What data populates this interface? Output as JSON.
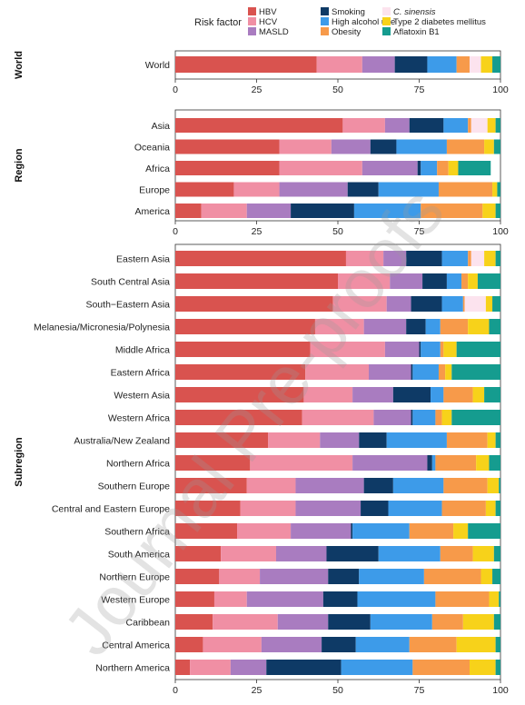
{
  "legend": {
    "title": "Risk factor",
    "items": [
      {
        "label": "HBV",
        "color": "#d9534f"
      },
      {
        "label": "HCV",
        "color": "#f08fa4"
      },
      {
        "label": "MASLD",
        "color": "#a97cc0"
      },
      {
        "label": "Smoking",
        "color": "#0e3a66"
      },
      {
        "label": "High alcohol use",
        "color": "#3d9be9"
      },
      {
        "label": "Obesity",
        "color": "#f79a4a"
      },
      {
        "label": "C. sinensis",
        "color": "#fce3ee",
        "italic": true
      },
      {
        "label": "Type 2 diabetes mellitus",
        "color": "#f7d21a"
      },
      {
        "label": "Aflatoxin B1",
        "color": "#159c8f"
      }
    ]
  },
  "watermark": "Journal Pre-proofs",
  "chart_data": {
    "type": "bar",
    "orientation": "horizontal",
    "stacked": true,
    "xlim": [
      0,
      100
    ],
    "xticks": [
      "0",
      "25",
      "50",
      "75",
      "100"
    ],
    "series": [
      "HBV",
      "HCV",
      "MASLD",
      "Smoking",
      "High alcohol use",
      "Obesity",
      "C. sinensis",
      "Type 2 diabetes mellitus",
      "Aflatoxin B1"
    ],
    "panels": [
      {
        "title": "World",
        "categories": [
          "World"
        ],
        "values": [
          [
            43.5,
            14,
            10,
            10,
            9,
            4,
            3.5,
            3.5,
            2.5
          ]
        ]
      },
      {
        "title": "Region",
        "categories": [
          "Asia",
          "Oceania",
          "Africa",
          "Europe",
          "America"
        ],
        "values": [
          [
            51.5,
            13,
            7.5,
            10.5,
            7.5,
            1,
            5,
            2.5,
            1.5
          ],
          [
            32,
            16,
            12,
            8,
            15.5,
            11.5,
            0,
            3,
            2
          ],
          [
            32,
            25.5,
            17,
            1,
            5,
            3.5,
            0,
            3,
            10
          ],
          [
            18,
            14,
            21,
            9.5,
            18.5,
            16.5,
            0,
            1.5,
            1
          ],
          [
            8,
            14,
            13.5,
            19.5,
            20.5,
            19,
            0,
            4,
            1.5
          ]
        ]
      },
      {
        "title": "Subregion",
        "categories": [
          "Eastern Asia",
          "South Central Asia",
          "South−Eastern Asia",
          "Melanesia/Micronesia/Polynesia",
          "Middle Africa",
          "Eastern Africa",
          "Western Asia",
          "Western Africa",
          "Australia/New Zealand",
          "Northern Africa",
          "Southern Europe",
          "Central and Eastern Europe",
          "Southern Africa",
          "South America",
          "Northern Europe",
          "Western Europe",
          "Caribbean",
          "Central America",
          "Northern America"
        ],
        "values": [
          [
            52.5,
            11.5,
            7,
            11,
            8,
            1,
            4,
            3.5,
            1.5
          ],
          [
            50,
            16,
            10,
            7.5,
            4.5,
            2,
            0,
            3,
            7
          ],
          [
            48.5,
            16.5,
            7.5,
            9.5,
            6.5,
            0.5,
            6.5,
            2,
            2.5
          ],
          [
            43,
            15,
            13,
            6,
            4.5,
            8.5,
            0,
            6.5,
            3.5
          ],
          [
            41.5,
            23,
            10.5,
            0.5,
            6,
            1,
            0,
            4,
            13.5
          ],
          [
            40,
            19.5,
            13,
            0.5,
            8,
            2,
            0,
            2,
            15
          ],
          [
            39.5,
            15,
            12.5,
            11.5,
            4,
            9,
            0,
            3.5,
            5
          ],
          [
            39,
            22,
            11.5,
            0.5,
            7,
            2,
            0,
            3,
            15
          ],
          [
            28.5,
            16,
            12,
            8.5,
            18.5,
            12.5,
            0,
            2.5,
            1.5
          ],
          [
            23,
            31.5,
            23,
            1.5,
            1,
            12.5,
            0,
            4,
            3.5
          ],
          [
            22,
            15,
            21,
            9,
            15.5,
            13.5,
            0,
            3.5,
            0.5
          ],
          [
            20,
            17,
            20,
            8.5,
            16.5,
            13.5,
            0,
            3,
            1.5
          ],
          [
            19,
            16.5,
            18.5,
            0.5,
            17.5,
            13.5,
            0,
            4.5,
            10
          ],
          [
            14,
            17,
            15.5,
            16,
            19,
            10,
            0,
            6.5,
            2
          ],
          [
            13.5,
            12.5,
            21,
            9.5,
            20,
            17.5,
            0,
            3.5,
            2.5
          ],
          [
            12,
            10,
            23.5,
            10.5,
            24,
            16.5,
            0,
            3,
            0.5
          ],
          [
            11.5,
            20,
            15.5,
            13,
            19,
            9.5,
            0,
            9.5,
            2
          ],
          [
            8.5,
            18,
            18.5,
            10.5,
            16.5,
            14.5,
            0,
            12,
            1.5
          ],
          [
            4.5,
            12.5,
            11,
            23,
            22,
            17.5,
            0,
            8,
            1.5
          ]
        ]
      }
    ]
  }
}
